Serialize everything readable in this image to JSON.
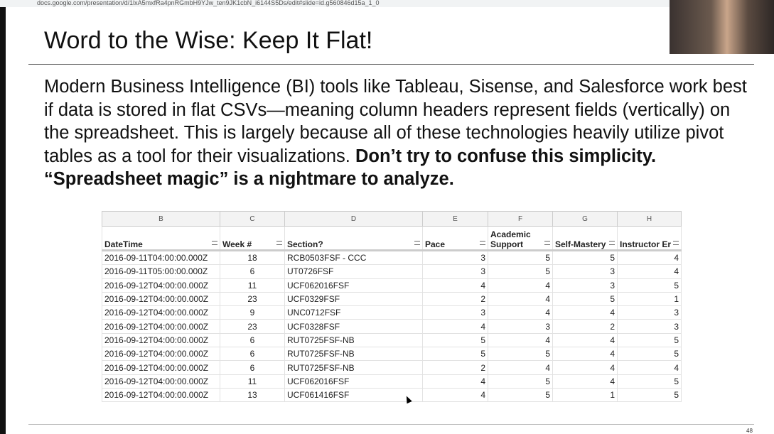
{
  "browser": {
    "url": "docs.google.com/presentation/d/1lxA5mxfRa4pnRGmbH9YJw_ten9JK1cbN_i6144S5Ds/edit#slide=id.g560846d15a_1_0"
  },
  "slide": {
    "title": "Word to the Wise: Keep It Flat!",
    "body": "Modern Business Intelligence (BI) tools like Tableau, Sisense, and Salesforce work best if data is stored in flat CSVs—meaning column headers represent fields (vertically) on the spreadsheet. This is largely because all of these technologies heavily utilize pivot tables as a tool for their visualizations.",
    "body_bold": "Don’t try to confuse this simplicity. “Spreadsheet magic” is a nightmare to analyze.",
    "page_number": "48"
  },
  "table": {
    "column_letters": [
      "B",
      "C",
      "D",
      "E",
      "F",
      "G",
      "H"
    ],
    "headers": [
      "DateTime",
      "Week #",
      "Section?",
      "Pace",
      "Academic Support",
      "Self-Mastery",
      "Instructor Er"
    ],
    "rows": [
      [
        "2016-09-11T04:00:00.000Z",
        18,
        "RCB0503FSF - CCC",
        3,
        5,
        5,
        4
      ],
      [
        "2016-09-11T05:00:00.000Z",
        6,
        "UT0726FSF",
        3,
        5,
        3,
        4
      ],
      [
        "2016-09-12T04:00:00.000Z",
        11,
        "UCF062016FSF",
        4,
        4,
        3,
        5
      ],
      [
        "2016-09-12T04:00:00.000Z",
        23,
        "UCF0329FSF",
        2,
        4,
        5,
        1
      ],
      [
        "2016-09-12T04:00:00.000Z",
        9,
        "UNC0712FSF",
        3,
        4,
        4,
        3
      ],
      [
        "2016-09-12T04:00:00.000Z",
        23,
        "UCF0328FSF",
        4,
        3,
        2,
        3
      ],
      [
        "2016-09-12T04:00:00.000Z",
        6,
        "RUT0725FSF-NB",
        5,
        4,
        4,
        5
      ],
      [
        "2016-09-12T04:00:00.000Z",
        6,
        "RUT0725FSF-NB",
        5,
        5,
        4,
        5
      ],
      [
        "2016-09-12T04:00:00.000Z",
        6,
        "RUT0725FSF-NB",
        2,
        4,
        4,
        4
      ],
      [
        "2016-09-12T04:00:00.000Z",
        11,
        "UCF062016FSF",
        4,
        5,
        4,
        5
      ],
      [
        "2016-09-12T04:00:00.000Z",
        13,
        "UCF061416FSF",
        4,
        5,
        1,
        5
      ]
    ]
  }
}
